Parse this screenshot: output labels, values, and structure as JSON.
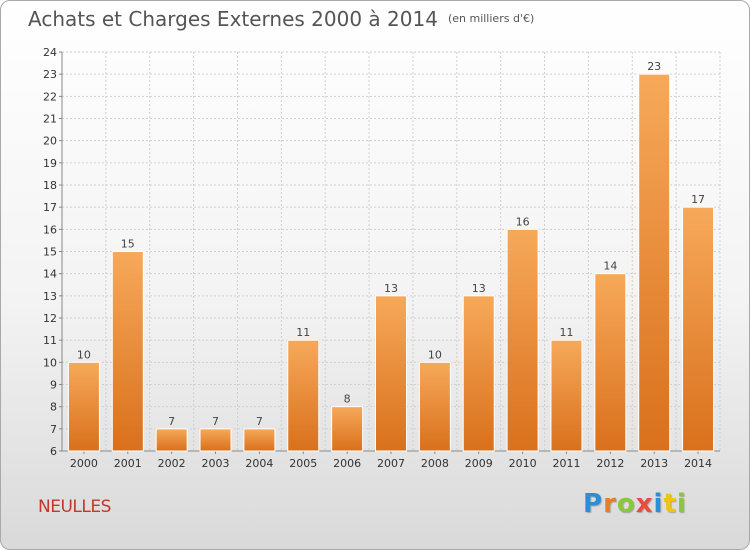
{
  "header": {
    "title": "Achats et Charges Externes 2000 à 2014",
    "subtitle": "(en milliers d'€)"
  },
  "footer": {
    "commune": "NEULLES",
    "logo_letters": [
      "P",
      "r",
      "o",
      "x",
      "i",
      "t",
      "i"
    ],
    "logo_colors": [
      "#2c8ed6",
      "#e67e22",
      "#8cc63f",
      "#e74c3c",
      "#2c8ed6",
      "#f1c40f",
      "#8cc63f"
    ]
  },
  "colors": {
    "bar_light": "#f6a95a",
    "bar_dark": "#d9701c",
    "commune": "#c0392b",
    "axis_text": "#333333"
  },
  "chart_data": {
    "type": "bar",
    "title": "Achats et Charges Externes 2000 à 2014",
    "subtitle": "(en milliers d'€)",
    "categories": [
      "2000",
      "2001",
      "2002",
      "2003",
      "2004",
      "2005",
      "2006",
      "2007",
      "2008",
      "2009",
      "2010",
      "2011",
      "2012",
      "2013",
      "2014"
    ],
    "values": [
      10,
      15,
      7,
      7,
      7,
      11,
      8,
      13,
      10,
      13,
      16,
      11,
      14,
      23,
      17
    ],
    "ylim": [
      6,
      24
    ],
    "yticks": [
      6,
      7,
      8,
      9,
      10,
      11,
      12,
      13,
      14,
      15,
      16,
      17,
      18,
      19,
      20,
      21,
      22,
      23,
      24
    ],
    "xlabel": "",
    "ylabel": "",
    "grid": true,
    "data_labels": true
  }
}
